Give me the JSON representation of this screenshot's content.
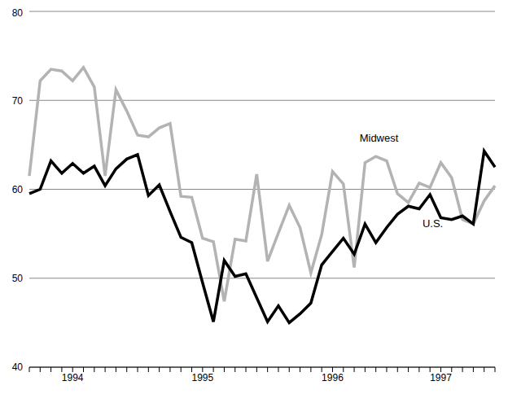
{
  "chart_data": {
    "type": "line",
    "categories": [
      null,
      null,
      null,
      null,
      "1994",
      null,
      null,
      null,
      null,
      null,
      null,
      null,
      null,
      null,
      null,
      null,
      "1995",
      null,
      null,
      null,
      null,
      null,
      null,
      null,
      null,
      null,
      null,
      null,
      "1996",
      null,
      null,
      null,
      null,
      null,
      null,
      null,
      null,
      null,
      "1997",
      null,
      null,
      null,
      null,
      null
    ],
    "series": [
      {
        "name": "Midwest",
        "color": "#b3b3b3",
        "values": [
          61.5,
          72.2,
          73.5,
          73.3,
          72.2,
          73.7,
          71.5,
          61.5,
          71.2,
          68.8,
          66.1,
          65.9,
          66.9,
          67.4,
          59.2,
          59.1,
          54.5,
          54.1,
          47.4,
          54.4,
          54.2,
          61.7,
          51.9,
          55.1,
          58.2,
          55.7,
          50.6,
          54.9,
          62,
          60.6,
          51.2,
          63,
          63.7,
          63.2,
          59.5,
          58.5,
          60.7,
          60.2,
          63,
          61.3,
          56.6,
          56.1,
          58.7,
          60.4
        ]
      },
      {
        "name": "U.S.",
        "color": "#000000",
        "values": [
          59.5,
          60,
          63.2,
          61.8,
          62.9,
          61.8,
          62.6,
          60.4,
          62.3,
          63.4,
          63.9,
          59.3,
          60.5,
          57.5,
          54.6,
          54,
          49.5,
          45.1,
          52,
          50.2,
          50.5,
          47.8,
          45.1,
          46.9,
          45,
          46,
          47.2,
          51.5,
          53,
          54.5,
          52.7,
          56.1,
          54,
          55.7,
          57.2,
          58.1,
          57.8,
          59.4,
          56.8,
          56.6,
          57,
          56.1,
          64.3,
          62.5
        ]
      }
    ],
    "ylim": [
      40,
      80
    ],
    "yticks": [
      40,
      50,
      60,
      70,
      80
    ],
    "grid": true
  }
}
